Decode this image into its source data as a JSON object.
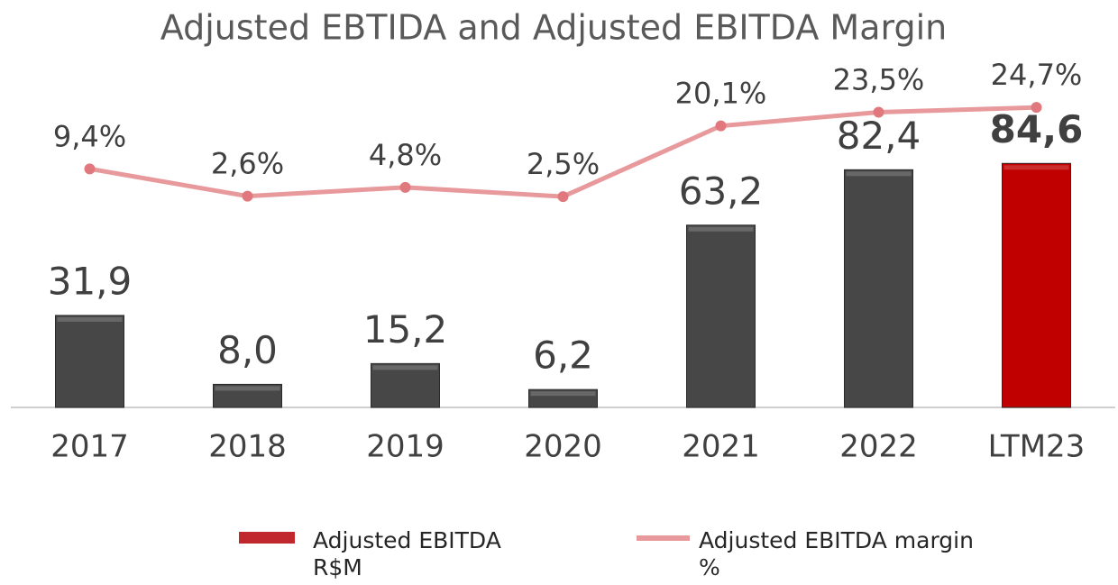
{
  "chart_data": {
    "type": "bar",
    "title": "Adjusted EBTIDA and Adjusted EBITDA Margin",
    "categories": [
      "2017",
      "2018",
      "2019",
      "2020",
      "2021",
      "2022",
      "LTM23"
    ],
    "ylim": [
      0,
      110
    ],
    "y2lim": [
      -50,
      29
    ],
    "series": [
      {
        "name": "Adjusted EBITDA R$M",
        "type": "bar",
        "color": "#c00000",
        "colors": [
          "#474747",
          "#474747",
          "#474747",
          "#474747",
          "#474747",
          "#474747",
          "#c00000"
        ],
        "values": [
          31.9,
          8.0,
          15.2,
          6.2,
          63.2,
          82.4,
          84.6
        ],
        "value_labels": [
          "31,9",
          "8,0",
          "15,2",
          "6,2",
          "63,2",
          "82,4",
          "84,6"
        ]
      },
      {
        "name": "Adjusted EBITDA margin %",
        "type": "line",
        "axis": "y2",
        "color": "#e8999c",
        "values": [
          9.4,
          2.6,
          4.8,
          2.5,
          20.1,
          23.5,
          24.7
        ],
        "value_labels": [
          "9,4%",
          "2,6%",
          "4,8%",
          "2,5%",
          "20,1%",
          "23,5%",
          "24,7%"
        ]
      }
    ]
  }
}
